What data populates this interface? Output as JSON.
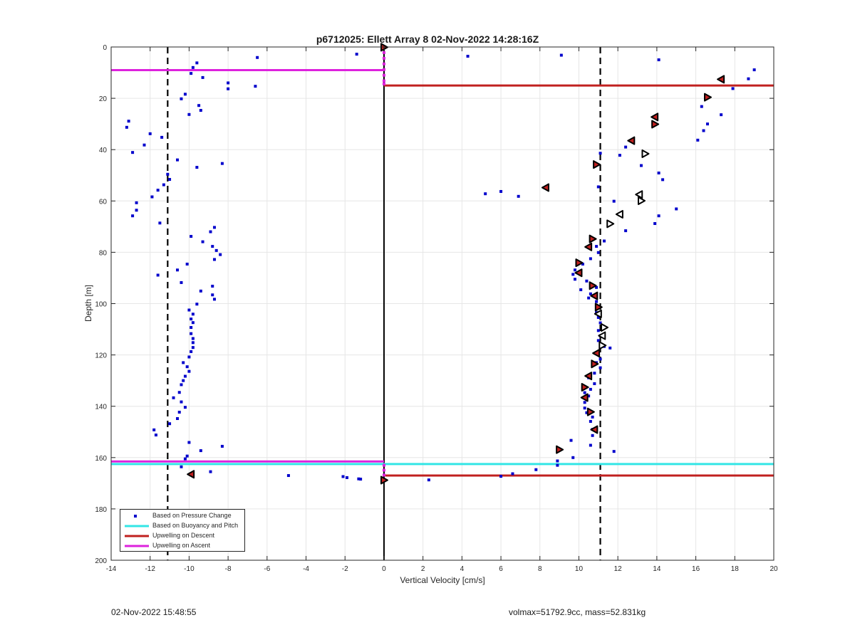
{
  "chart_data": {
    "type": "scatter",
    "title": "p6712025: Ellett Array 8 02-Nov-2022 14:28:16Z",
    "xlabel": "Vertical Velocity [cm/s]",
    "ylabel": "Depth [m]",
    "xlim": [
      -14,
      20
    ],
    "ylim": [
      0,
      200
    ],
    "y_reversed": true,
    "grid": true,
    "legend_position": "bottom-left",
    "x_ticks": [
      -14,
      -12,
      -10,
      -8,
      -6,
      -4,
      -2,
      0,
      2,
      4,
      6,
      8,
      10,
      12,
      14,
      16,
      18,
      20
    ],
    "y_ticks": [
      0,
      20,
      40,
      60,
      80,
      100,
      120,
      140,
      160,
      180,
      200
    ],
    "volmax_lines_x": [
      -11.1,
      11.1
    ],
    "zero_line_x": 0,
    "legend": [
      {
        "label": "Based on Pressure Change",
        "color": "#0000cc",
        "symbol": "dot"
      },
      {
        "label": "Based on Buoyancy and Pitch",
        "color": "#33e6e6",
        "symbol": "line"
      },
      {
        "label": "Upwelling on Descent",
        "color": "#c0201f",
        "symbol": "line"
      },
      {
        "label": "Upwelling on Ascent",
        "color": "#dd22dd",
        "symbol": "line"
      }
    ],
    "horizontal_lines": [
      {
        "series": "Upwelling on Ascent",
        "y": 9,
        "x_range": [
          -14,
          0
        ],
        "color": "#dd22dd"
      },
      {
        "series": "Upwelling on Descent",
        "y": 15,
        "x_range": [
          0,
          20
        ],
        "color": "#c0201f"
      },
      {
        "series": "Upwelling on Ascent",
        "y": 161.5,
        "x_range": [
          -14,
          0
        ],
        "color": "#dd22dd"
      },
      {
        "series": "Based on Buoyancy and Pitch",
        "y": 162.5,
        "x_range": [
          -14,
          20
        ],
        "color": "#33e6e6"
      },
      {
        "series": "Upwelling on Descent",
        "y": 167,
        "x_range": [
          0,
          20
        ],
        "color": "#c0201f"
      }
    ],
    "series": [
      {
        "name": "Based on Pressure Change",
        "color": "#0000cc",
        "points": [
          [
            -1.4,
            2.8
          ],
          [
            4.3,
            3.6
          ],
          [
            9.1,
            3.2
          ],
          [
            14.1,
            5.0
          ],
          [
            -6.5,
            4.1
          ],
          [
            -9.6,
            6.2
          ],
          [
            -9.8,
            8.0
          ],
          [
            -9.9,
            10.3
          ],
          [
            -9.3,
            11.9
          ],
          [
            -8.0,
            14.0
          ],
          [
            -8.0,
            16.3
          ],
          [
            -6.6,
            15.3
          ],
          [
            19.0,
            8.9
          ],
          [
            18.7,
            12.4
          ],
          [
            17.9,
            16.2
          ],
          [
            -10.2,
            18.4
          ],
          [
            -10.4,
            20.2
          ],
          [
            -9.5,
            22.8
          ],
          [
            -9.4,
            24.7
          ],
          [
            -10.0,
            26.3
          ],
          [
            16.3,
            23.2
          ],
          [
            17.3,
            26.4
          ],
          [
            -13.1,
            28.9
          ],
          [
            -13.2,
            31.3
          ],
          [
            16.6,
            30.0
          ],
          [
            16.4,
            32.6
          ],
          [
            -12.0,
            33.8
          ],
          [
            -11.4,
            35.2
          ],
          [
            -12.3,
            38.2
          ],
          [
            -12.9,
            41.1
          ],
          [
            16.1,
            36.3
          ],
          [
            12.4,
            39.0
          ],
          [
            12.1,
            42.2
          ],
          [
            11.1,
            41.4
          ],
          [
            13.2,
            46.2
          ],
          [
            -10.6,
            44.0
          ],
          [
            -9.6,
            46.9
          ],
          [
            -8.3,
            45.4
          ],
          [
            14.1,
            49.1
          ],
          [
            14.3,
            51.7
          ],
          [
            -11.1,
            49.6
          ],
          [
            -11.0,
            51.6
          ],
          [
            -11.3,
            53.7
          ],
          [
            -11.6,
            55.8
          ],
          [
            -11.9,
            58.4
          ],
          [
            11.0,
            54.5
          ],
          [
            5.2,
            57.2
          ],
          [
            6.0,
            56.3
          ],
          [
            6.9,
            58.2
          ],
          [
            11.8,
            60.1
          ],
          [
            -12.7,
            60.7
          ],
          [
            -12.7,
            63.6
          ],
          [
            -12.9,
            65.8
          ],
          [
            15.0,
            63.1
          ],
          [
            14.1,
            65.8
          ],
          [
            13.9,
            68.8
          ],
          [
            -11.5,
            68.6
          ],
          [
            12.4,
            71.6
          ],
          [
            -8.7,
            70.3
          ],
          [
            -8.9,
            72.0
          ],
          [
            -9.9,
            73.8
          ],
          [
            -9.3,
            75.9
          ],
          [
            11.3,
            75.6
          ],
          [
            -8.8,
            77.7
          ],
          [
            -8.6,
            79.3
          ],
          [
            -8.4,
            80.9
          ],
          [
            -8.7,
            82.8
          ],
          [
            10.9,
            77.7
          ],
          [
            11.0,
            80.1
          ],
          [
            10.6,
            82.5
          ],
          [
            -10.1,
            84.6
          ],
          [
            -10.6,
            86.9
          ],
          [
            10.2,
            84.6
          ],
          [
            9.8,
            86.9
          ],
          [
            9.7,
            88.6
          ],
          [
            -11.6,
            88.9
          ],
          [
            9.8,
            90.5
          ],
          [
            -10.4,
            91.8
          ],
          [
            -8.8,
            93.2
          ],
          [
            10.4,
            91.2
          ],
          [
            10.9,
            93.7
          ],
          [
            -9.4,
            95.1
          ],
          [
            10.1,
            94.6
          ],
          [
            -8.8,
            96.6
          ],
          [
            -8.7,
            98.3
          ],
          [
            10.6,
            96.2
          ],
          [
            10.5,
            97.8
          ],
          [
            -9.6,
            100.2
          ],
          [
            -10.0,
            102.5
          ],
          [
            10.9,
            99.2
          ],
          [
            10.9,
            101.1
          ],
          [
            -9.8,
            104.1
          ],
          [
            -9.9,
            106.0
          ],
          [
            10.9,
            103.5
          ],
          [
            11.0,
            105.4
          ],
          [
            -9.8,
            107.4
          ],
          [
            -9.9,
            109.3
          ],
          [
            11.1,
            107.5
          ],
          [
            11.0,
            110.5
          ],
          [
            -9.9,
            111.7
          ],
          [
            -9.8,
            113.6
          ],
          [
            11.1,
            112.5
          ],
          [
            -9.8,
            115.2
          ],
          [
            -9.8,
            117.1
          ],
          [
            11.0,
            114.4
          ],
          [
            11.3,
            116.7
          ],
          [
            11.6,
            117.3
          ],
          [
            -9.9,
            118.7
          ],
          [
            -10.0,
            120.8
          ],
          [
            11.0,
            119.2
          ],
          [
            11.1,
            121.6
          ],
          [
            -10.3,
            123.0
          ],
          [
            -10.1,
            124.6
          ],
          [
            10.9,
            123.0
          ],
          [
            11.1,
            125.0
          ],
          [
            -10.0,
            126.4
          ],
          [
            -10.2,
            128.3
          ],
          [
            10.8,
            127.1
          ],
          [
            10.5,
            128.9
          ],
          [
            -10.3,
            130.0
          ],
          [
            -10.4,
            131.6
          ],
          [
            10.8,
            131.2
          ],
          [
            10.6,
            133.4
          ],
          [
            -10.5,
            134.6
          ],
          [
            -10.8,
            136.7
          ],
          [
            10.3,
            134.7
          ],
          [
            10.5,
            136.0
          ],
          [
            -10.4,
            138.3
          ],
          [
            -10.2,
            140.4
          ],
          [
            10.3,
            138.5
          ],
          [
            10.3,
            140.7
          ],
          [
            -10.5,
            142.3
          ],
          [
            10.4,
            142.5
          ],
          [
            -10.6,
            144.8
          ],
          [
            10.7,
            144.2
          ],
          [
            10.6,
            145.9
          ],
          [
            -11.0,
            146.8
          ],
          [
            -11.8,
            149.2
          ],
          [
            -11.7,
            151.2
          ],
          [
            10.7,
            149.0
          ],
          [
            10.7,
            151.4
          ],
          [
            -10.0,
            154.1
          ],
          [
            10.6,
            155.2
          ],
          [
            9.6,
            153.3
          ],
          [
            -8.3,
            155.6
          ],
          [
            -9.4,
            157.3
          ],
          [
            11.8,
            157.6
          ],
          [
            -10.1,
            159.4
          ],
          [
            -10.2,
            160.5
          ],
          [
            9.7,
            160.0
          ],
          [
            8.9,
            161.3
          ],
          [
            8.9,
            163.0
          ],
          [
            -10.4,
            163.6
          ],
          [
            -8.9,
            165.5
          ],
          [
            7.8,
            164.7
          ],
          [
            6.6,
            166.3
          ],
          [
            6.0,
            167.3
          ],
          [
            -4.9,
            167.0
          ],
          [
            -2.1,
            167.4
          ],
          [
            -1.9,
            167.8
          ],
          [
            -1.3,
            168.3
          ],
          [
            -1.2,
            168.4
          ],
          [
            2.3,
            168.7
          ]
        ]
      },
      {
        "name": "Upwelling on Descent",
        "color": "#c0201f",
        "marker": "filled-triangle",
        "points": [
          [
            0,
            0.1
          ],
          [
            17.3,
            12.6
          ],
          [
            16.6,
            19.6
          ],
          [
            13.9,
            27.3
          ],
          [
            13.9,
            30.1
          ],
          [
            12.7,
            36.5
          ],
          [
            10.9,
            45.8
          ],
          [
            8.3,
            54.8
          ],
          [
            10.7,
            74.8
          ],
          [
            10.5,
            77.9
          ],
          [
            10.0,
            84.1
          ],
          [
            10.0,
            88.0
          ],
          [
            10.7,
            93.0
          ],
          [
            10.8,
            97.0
          ],
          [
            11.0,
            101.4
          ],
          [
            10.9,
            119.3
          ],
          [
            10.8,
            123.5
          ],
          [
            10.5,
            128.2
          ],
          [
            10.3,
            132.6
          ],
          [
            10.3,
            136.6
          ],
          [
            10.6,
            142.2
          ],
          [
            10.8,
            149.1
          ],
          [
            9.0,
            156.9
          ],
          [
            -9.9,
            166.5
          ],
          [
            0,
            168.8
          ]
        ]
      },
      {
        "name": "Upwelling on Descent (hollow markers)",
        "color": "#ffffff",
        "marker": "open-triangle",
        "points": [
          [
            13.4,
            41.6
          ],
          [
            13.1,
            57.5
          ],
          [
            13.2,
            59.9
          ],
          [
            12.1,
            65.2
          ],
          [
            11.6,
            68.9
          ],
          [
            11.0,
            104.0
          ],
          [
            11.3,
            109.3
          ],
          [
            11.2,
            112.5
          ],
          [
            11.2,
            116.3
          ]
        ]
      },
      {
        "name": "Upwelling on Ascent",
        "color": "#dd22dd",
        "marker": "dot",
        "points": [
          [
            0,
            2.2
          ],
          [
            0,
            4.4
          ],
          [
            0,
            6.6
          ],
          [
            0,
            8.8
          ],
          [
            0,
            11.0
          ],
          [
            0,
            13.2
          ],
          [
            0,
            14.4
          ],
          [
            0,
            163.0
          ],
          [
            0,
            164.9
          ],
          [
            0,
            166.8
          ]
        ]
      }
    ]
  },
  "footer": {
    "timestamp": "02-Nov-2022 15:48:55",
    "info": "volmax=51792.9cc, mass=52.831kg"
  }
}
